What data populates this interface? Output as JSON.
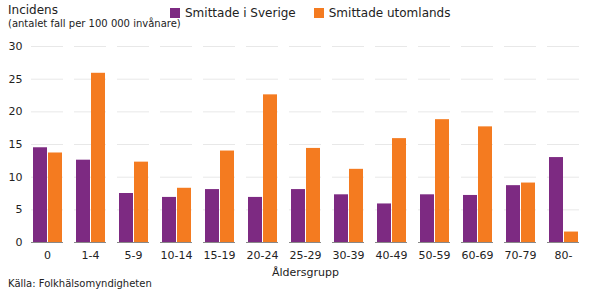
{
  "chart_data": {
    "type": "bar",
    "ylabel": "Incidens",
    "subtitle": "(antalet fall per 100 000 invånare)",
    "xlabel": "Åldersgrupp",
    "caption": "Källa: Folkhälsomyndigheten",
    "categories": [
      "0",
      "1-4",
      "5-9",
      "10-14",
      "15-19",
      "20-24",
      "25-29",
      "30-39",
      "40-49",
      "50-59",
      "60-69",
      "70-79",
      "80-"
    ],
    "series": [
      {
        "name": "Smittade i Sverige",
        "color": "#7d2a82",
        "values": [
          14.5,
          12.6,
          7.5,
          6.9,
          8.1,
          6.9,
          8.1,
          7.3,
          5.9,
          7.3,
          7.2,
          8.7,
          13.0
        ]
      },
      {
        "name": "Smittade utomlands",
        "color": "#f47b20",
        "values": [
          13.7,
          25.9,
          12.3,
          8.3,
          14.0,
          22.6,
          14.4,
          11.2,
          15.9,
          18.8,
          17.7,
          9.1,
          1.6
        ]
      }
    ],
    "ylim": [
      0,
      30
    ],
    "yticks": [
      0,
      5,
      10,
      15,
      20,
      25,
      30
    ],
    "grid": true,
    "legend": "top"
  }
}
